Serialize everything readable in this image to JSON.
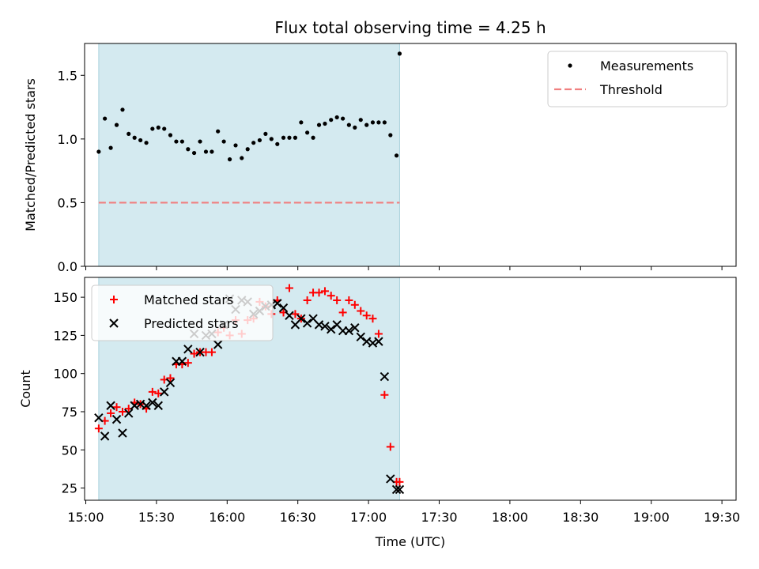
{
  "chart_data": {
    "title": "Flux total observing time = 4.25 h",
    "xlabel": "Time (UTC)",
    "x_ticks": [
      "15:00",
      "15:30",
      "16:00",
      "16:30",
      "17:00",
      "17:30",
      "18:00",
      "18:30",
      "19:00",
      "19:30"
    ],
    "x_tick_minutes": [
      0,
      30,
      60,
      90,
      120,
      150,
      180,
      210,
      240,
      270
    ],
    "xlim_minutes": [
      -0.5,
      276
    ],
    "shaded_window_minutes": [
      5.5,
      133.2
    ],
    "shade_color": "#d4eaf0",
    "panels": [
      {
        "type": "scatter",
        "ylabel": "Matched/Predicted stars",
        "ylim": [
          0,
          1.75
        ],
        "y_ticks": [
          0.0,
          0.5,
          1.0,
          1.5
        ],
        "y_tick_labels": [
          "0.0",
          "0.5",
          "1.0",
          "1.5"
        ],
        "legend_position": "upper right",
        "series": [
          {
            "name": "Measurements",
            "color": "#000000",
            "marker": "dot",
            "x": [
              5.5,
              8.1,
              10.6,
              13.1,
              15.6,
              18.2,
              20.7,
              23.2,
              25.7,
              28.3,
              30.8,
              33.3,
              35.9,
              38.4,
              40.9,
              43.4,
              46.0,
              48.5,
              51.0,
              53.5,
              56.1,
              58.6,
              61.1,
              63.6,
              66.2,
              68.7,
              71.2,
              73.8,
              76.3,
              78.8,
              81.3,
              83.9,
              86.4,
              88.9,
              91.4,
              94.0,
              96.5,
              99.0,
              101.5,
              104.1,
              106.6,
              109.1,
              111.7,
              114.2,
              116.7,
              119.2,
              121.8,
              124.3,
              126.8,
              129.3,
              131.9,
              133.2
            ],
            "y": [
              0.9,
              1.16,
              0.93,
              1.11,
              1.23,
              1.04,
              1.01,
              0.99,
              0.97,
              1.08,
              1.09,
              1.08,
              1.03,
              0.98,
              0.98,
              0.92,
              0.89,
              0.98,
              0.9,
              0.9,
              1.06,
              0.98,
              0.84,
              0.95,
              0.85,
              0.92,
              0.97,
              0.99,
              1.04,
              1.0,
              0.96,
              1.01,
              1.01,
              1.01,
              1.13,
              1.05,
              1.01,
              1.11,
              1.12,
              1.15,
              1.17,
              1.16,
              1.11,
              1.09,
              1.15,
              1.11,
              1.13,
              1.13,
              1.13,
              1.03,
              0.87,
              1.67
            ]
          },
          {
            "name": "Threshold",
            "color": "#f08080",
            "style": "dashed",
            "x": [
              5.5,
              133.2
            ],
            "y": [
              0.5,
              0.5
            ]
          }
        ]
      },
      {
        "type": "scatter",
        "ylabel": "Count",
        "ylim": [
          17,
          163
        ],
        "y_ticks": [
          25,
          50,
          75,
          100,
          125,
          150
        ],
        "y_tick_labels": [
          "25",
          "50",
          "75",
          "100",
          "125",
          "150"
        ],
        "legend_position": "upper left",
        "series": [
          {
            "name": "Matched stars",
            "color": "#ff0000",
            "marker": "plus",
            "x": [
              5.5,
              8.1,
              10.6,
              13.1,
              15.6,
              18.2,
              20.7,
              23.2,
              25.7,
              28.3,
              30.8,
              33.3,
              35.9,
              38.4,
              40.9,
              43.4,
              46.0,
              48.5,
              51.0,
              53.5,
              56.1,
              58.6,
              61.1,
              63.6,
              66.2,
              68.7,
              71.2,
              73.8,
              76.3,
              78.8,
              81.3,
              83.9,
              86.4,
              88.9,
              91.4,
              94.0,
              96.5,
              99.0,
              101.5,
              104.1,
              106.6,
              109.1,
              111.7,
              114.2,
              116.7,
              119.2,
              121.8,
              124.3,
              126.8,
              129.3,
              131.9,
              133.2
            ],
            "y": [
              64,
              69,
              74,
              78,
              75,
              77,
              81,
              80,
              77,
              88,
              87,
              96,
              97,
              106,
              106,
              107,
              113,
              114,
              114,
              114,
              127,
              130,
              125,
              135,
              126,
              135,
              136,
              147,
              144,
              139,
              148,
              140,
              156,
              139,
              136,
              148,
              153,
              153,
              154,
              151,
              148,
              140,
              148,
              145,
              141,
              138,
              136,
              126,
              86,
              52,
              29,
              29
            ]
          },
          {
            "name": "Predicted stars",
            "color": "#000000",
            "marker": "x",
            "x": [
              5.5,
              8.1,
              10.6,
              13.1,
              15.6,
              18.2,
              20.7,
              23.2,
              25.7,
              28.3,
              30.8,
              33.3,
              35.9,
              38.4,
              40.9,
              43.4,
              46.0,
              48.5,
              51.0,
              53.5,
              56.1,
              58.6,
              61.1,
              63.6,
              66.2,
              68.7,
              71.2,
              73.8,
              76.3,
              78.8,
              81.3,
              83.9,
              86.4,
              88.9,
              91.4,
              94.0,
              96.5,
              99.0,
              101.5,
              104.1,
              106.6,
              109.1,
              111.7,
              114.2,
              116.7,
              119.2,
              121.8,
              124.3,
              126.8,
              129.3,
              131.9,
              133.2
            ],
            "y": [
              71,
              59,
              79,
              70,
              61,
              74,
              79,
              80,
              79,
              81,
              79,
              88,
              94,
              108,
              108,
              116,
              126,
              114,
              125,
              126,
              119,
              132,
              149,
              142,
              148,
              147,
              139,
              141,
              144,
              145,
              146,
              143,
              138,
              132,
              136,
              133,
              136,
              132,
              131,
              129,
              132,
              128,
              128,
              130,
              124,
              121,
              120,
              121,
              98,
              31,
              24,
              24
            ]
          }
        ]
      }
    ]
  }
}
